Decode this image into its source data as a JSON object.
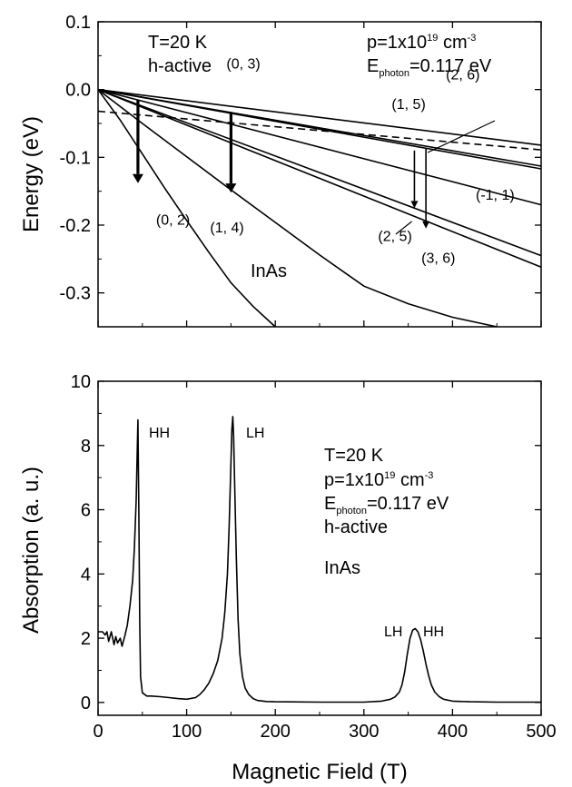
{
  "chart_data": [
    {
      "type": "line",
      "ylabel": "Energy (eV)",
      "xlabel": "",
      "xlim": [
        0,
        500
      ],
      "ylim": [
        -0.35,
        0.1
      ],
      "x_ticks": [
        "0",
        "100",
        "200",
        "300",
        "400",
        "500"
      ],
      "y_ticks": [
        "0.1",
        "0.0",
        "-0.1",
        "-0.2",
        "-0.3"
      ],
      "y_tick_values": [
        0.1,
        0.0,
        -0.1,
        -0.2,
        -0.3
      ],
      "x_tick_values": [
        0,
        100,
        200,
        300,
        400,
        500
      ],
      "grid": false,
      "annotations": {
        "temp": "T=20 K",
        "mode": "h-active",
        "p_prefix": "p=1x10",
        "p_exp": "19",
        "p_unit": " cm",
        "p_unit_exp": "-3",
        "e_prefix": "E",
        "e_sub": "photon",
        "e_value": "=0.117 eV",
        "material": "InAs"
      },
      "series": [
        {
          "label": "(-1, 1)",
          "x": [
            0,
            500
          ],
          "y": [
            0,
            -0.082
          ]
        },
        {
          "x": [
            0,
            500
          ],
          "y": [
            0,
            -0.113
          ]
        },
        {
          "x": [
            0,
            500
          ],
          "y": [
            0,
            -0.117
          ]
        },
        {
          "x": [
            0,
            500
          ],
          "y": [
            0,
            -0.17
          ]
        },
        {
          "x": [
            0,
            500
          ],
          "y": [
            0,
            -0.245
          ]
        },
        {
          "x": [
            0,
            500
          ],
          "y": [
            0,
            -0.262
          ]
        },
        {
          "label": "(1, 4)",
          "x": [
            0,
            50,
            100,
            150,
            200,
            250,
            300,
            350,
            400,
            450
          ],
          "y": [
            0,
            -0.05,
            -0.099,
            -0.148,
            -0.196,
            -0.244,
            -0.29,
            -0.316,
            -0.336,
            -0.35
          ]
        },
        {
          "label": "(0, 2)",
          "x": [
            0,
            25,
            50,
            75,
            100,
            125,
            150,
            175,
            200
          ],
          "y": [
            0,
            -0.045,
            -0.095,
            -0.145,
            -0.193,
            -0.24,
            -0.285,
            -0.32,
            -0.35
          ]
        }
      ],
      "dashed_line": {
        "x": [
          0,
          500
        ],
        "y": [
          -0.032,
          -0.089
        ]
      },
      "transitions": [
        {
          "label_top": "",
          "label_bottom": "(0, 2)",
          "x": 45,
          "y_from": -0.015,
          "y_to": -0.138,
          "thick": true
        },
        {
          "label_top": "(0, 3)",
          "label_bottom": "(1, 4)",
          "x": 150,
          "y_from": -0.033,
          "y_to": -0.152,
          "thick": true
        },
        {
          "label_top": "(1, 5)",
          "label_bottom": "(2, 5)",
          "x": 357,
          "y_from": -0.09,
          "y_to": -0.175,
          "thick": false
        },
        {
          "label_top": "(2, 6)",
          "label_bottom": "(3, 6)",
          "x": 370,
          "y_from": -0.087,
          "y_to": -0.205,
          "thick": false
        }
      ],
      "extra_labels": [
        "(-1, 1)"
      ]
    },
    {
      "type": "line",
      "xlabel": "Magnetic Field (T)",
      "ylabel": "Absorption (a. u.)",
      "xlim": [
        0,
        500
      ],
      "ylim": [
        -0.4,
        10
      ],
      "x_ticks": [
        "0",
        "100",
        "200",
        "300",
        "400",
        "500"
      ],
      "x_tick_values": [
        0,
        100,
        200,
        300,
        400,
        500
      ],
      "y_ticks": [
        "0",
        "2",
        "4",
        "6",
        "8",
        "10"
      ],
      "y_tick_values": [
        0,
        2,
        4,
        6,
        8,
        10
      ],
      "grid": false,
      "peak_labels": [
        "HH",
        "LH",
        "LH",
        "HH"
      ],
      "annotations": {
        "temp": "T=20 K",
        "p_prefix": "p=1x10",
        "p_exp": "19",
        "p_unit": " cm",
        "p_unit_exp": "-3",
        "e_prefix": "E",
        "e_sub": "photon",
        "e_value": "=0.117 eV",
        "mode": "h-active",
        "material": "InAs"
      },
      "series": [
        {
          "x": [
            0,
            5,
            8,
            10,
            12,
            15,
            18,
            20,
            22,
            25,
            27,
            30,
            33,
            36,
            39,
            41,
            43,
            44,
            45,
            46,
            47,
            48,
            50,
            55,
            60,
            70,
            80,
            90,
            100,
            110,
            115,
            120,
            125,
            130,
            135,
            140,
            143,
            146,
            148,
            150,
            151,
            152,
            153,
            154,
            156,
            158,
            160,
            163,
            166,
            170,
            175,
            180,
            190,
            200,
            250,
            300,
            320,
            330,
            335,
            340,
            343,
            346,
            349,
            352,
            355,
            358,
            361,
            364,
            367,
            370,
            373,
            376,
            380,
            385,
            390,
            400,
            420,
            450,
            500
          ],
          "y": [
            2.2,
            2.2,
            2.1,
            2.2,
            1.9,
            2.2,
            1.8,
            2.05,
            1.85,
            2.0,
            1.75,
            2.05,
            2.4,
            3.0,
            3.8,
            4.8,
            6.3,
            7.5,
            8.8,
            6.0,
            2.5,
            0.8,
            0.3,
            0.2,
            0.2,
            0.18,
            0.15,
            0.12,
            0.1,
            0.15,
            0.25,
            0.4,
            0.6,
            0.9,
            1.3,
            2.0,
            2.8,
            4.0,
            5.5,
            7.5,
            8.5,
            8.9,
            8.3,
            7.0,
            4.5,
            2.6,
            1.5,
            0.8,
            0.45,
            0.25,
            0.12,
            0.06,
            0.03,
            0.02,
            0.01,
            0.01,
            0.04,
            0.1,
            0.17,
            0.32,
            0.55,
            0.95,
            1.5,
            2.0,
            2.25,
            2.3,
            2.2,
            1.95,
            1.6,
            1.2,
            0.85,
            0.55,
            0.32,
            0.18,
            0.1,
            0.04,
            0.02,
            0.01,
            0.01
          ]
        }
      ]
    }
  ]
}
